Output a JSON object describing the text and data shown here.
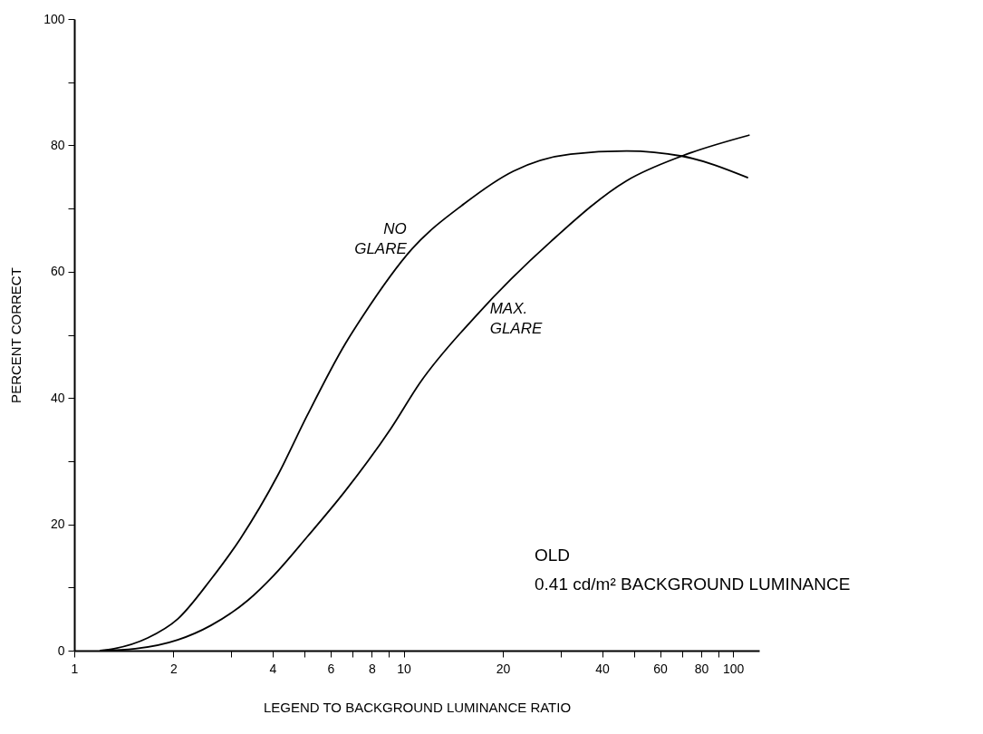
{
  "chart_data": {
    "type": "line",
    "xlabel": "LEGEND TO BACKGROUND LUMINANCE RATIO",
    "ylabel": "PERCENT CORRECT",
    "log": "x",
    "xlim": [
      1,
      120
    ],
    "xticks": [
      1,
      2,
      {
        "value": 3,
        "label": null
      },
      4,
      {
        "value": 5,
        "label": null
      },
      6,
      {
        "value": 7,
        "label": null
      },
      8,
      {
        "value": 9,
        "label": null
      },
      10,
      20,
      {
        "value": 30,
        "label": null
      },
      40,
      {
        "value": 50,
        "label": null
      },
      60,
      {
        "value": 70,
        "label": null
      },
      80,
      {
        "value": 90,
        "label": null
      },
      100
    ],
    "ylim": [
      0,
      100
    ],
    "yticks": [
      0,
      {
        "value": 10,
        "label": null
      },
      20,
      {
        "value": 30,
        "label": null
      },
      40,
      {
        "value": 50,
        "label": null
      },
      60,
      {
        "value": 70,
        "label": null
      },
      80,
      {
        "value": 90,
        "label": null
      },
      100
    ],
    "grid": false,
    "marker": "none",
    "line_style": "solid",
    "series": [
      {
        "name": "NO GLARE",
        "color": "#000000",
        "x": [
          1.2,
          1.32,
          1.67,
          2.06,
          2.6,
          3.19,
          4.16,
          5.09,
          6.65,
          7.5,
          10.6,
          15.3,
          21.5,
          32.1,
          47.5,
          69.8,
          110.5
        ],
        "values": [
          0,
          0.3,
          2,
          5,
          11.3,
          17.7,
          27.9,
          37.2,
          48.6,
          52.9,
          63.6,
          70.8,
          75.9,
          78.6,
          79.1,
          78.3,
          74.9
        ]
      },
      {
        "name": "MAX. GLARE",
        "color": "#000000",
        "x": [
          1.2,
          1.53,
          2.06,
          2.6,
          3.37,
          4.03,
          5.09,
          6.65,
          9.15,
          11.2,
          16.5,
          28,
          47.5,
          69.8,
          111.7
        ],
        "values": [
          0,
          0.3,
          1.7,
          4,
          8,
          11.9,
          18,
          25.3,
          35.2,
          42.4,
          52.9,
          64.8,
          74.4,
          78.3,
          81.6
        ]
      }
    ],
    "annotations": [
      "OLD",
      "0.41 cd/m² BACKGROUND LUMINANCE"
    ]
  }
}
